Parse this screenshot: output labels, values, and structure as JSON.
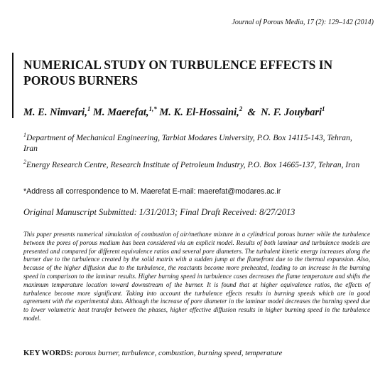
{
  "header": {
    "journal": "Journal of Porous Media, 17 (2): 129–142 (2014)"
  },
  "title": [
    "NUMERICAL STUDY ON TURBULENCE EFFECTS IN",
    "POROUS BURNERS"
  ],
  "authors": [
    {
      "name": "M. E. Nimvari,",
      "sup": "1"
    },
    {
      "name": "M. Maerefat,",
      "sup": "1,*"
    },
    {
      "name": "M. K. El-Hossaini,",
      "sup": "2"
    },
    {
      "name": "N. F. Jouybari",
      "sup": "1"
    }
  ],
  "author_conjunction": "&",
  "affiliations": [
    {
      "sup": "1",
      "text": "Department of Mechanical Engineering, Tarbiat Modares University, P.O. Box 14115-143, Tehran, Iran"
    },
    {
      "sup": "2",
      "text": "Energy Research Centre, Research Institute of Petroleum Industry, P.O. Box 14665-137, Tehran, Iran"
    }
  ],
  "correspondence": {
    "marker": "*",
    "text": "Address all correspondence to M. Maerefat E-mail: maerefat@modares.ac.ir"
  },
  "dates": "Original Manuscript Submitted: 1/31/2013; Final Draft Received: 8/27/2013",
  "abstract": "This paper presents numerical simulation of combustion of air/methane mixture in a cylindrical porous burner while the turbulence between the pores of porous medium has been considered via an explicit model. Results of both laminar and turbulence models are presented and compared for different equivalence ratios and several pore diameters. The turbulent kinetic energy increases along the burner due to the turbulence created by the solid matrix with a sudden jump at the flamefront due to the thermal expansion. Also, because of the higher diffusion due to the turbulence, the reactants become more preheated, leading to an increase in the burning speed in comparison to the laminar results. Higher burning speed in turbulence cases decreases the flame temperature and shifts the maximum temperature location toward downstream of the burner. It is found that at higher equivalence ratios, the effects of turbulence become more significant. Taking into account the turbulence effects results in burning speeds which are in good agreement with the experimental data. Although the increase of pore diameter in the laminar model decreases the burning speed due to lower volumetric heat transfer between the phases, higher effective diffusion results in higher burning speed in the turbulence model.",
  "keywords": {
    "label": "KEY WORDS:",
    "text": "porous burner, turbulence, combustion, burning speed, temperature"
  }
}
